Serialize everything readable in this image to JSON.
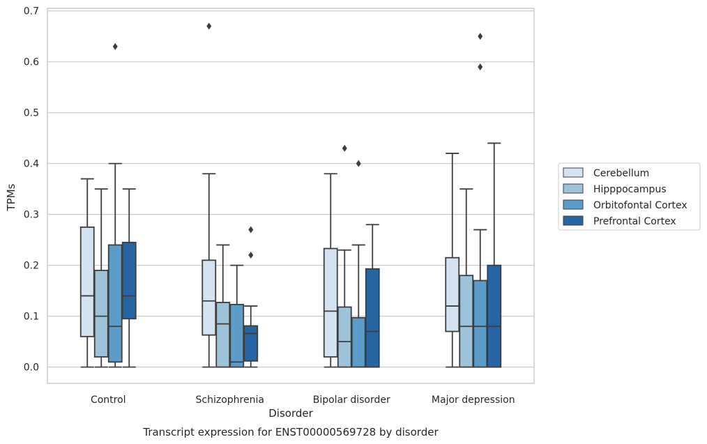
{
  "chart_data": {
    "type": "boxplot",
    "title": "",
    "caption": "Transcript expression for ENST00000569728 by disorder",
    "xlabel": "Disorder",
    "ylabel": "TPMs",
    "ylim": [
      -0.032,
      0.705
    ],
    "yticks": [
      "0.0",
      "0.1",
      "0.2",
      "0.3",
      "0.4",
      "0.5",
      "0.6",
      "0.7"
    ],
    "grid": "horizontal",
    "legend_position": "right",
    "categories": [
      "Control",
      "Schizophrenia",
      "Bipolar disorder",
      "Major depression"
    ],
    "series": [
      {
        "name": "Cerebellum",
        "color": "#d3e3f2",
        "boxes": [
          {
            "whislo": 0.0,
            "q1": 0.06,
            "med": 0.14,
            "q3": 0.275,
            "whishi": 0.37,
            "fliers": []
          },
          {
            "whislo": 0.0,
            "q1": 0.063,
            "med": 0.13,
            "q3": 0.21,
            "whishi": 0.38,
            "fliers": [
              0.67
            ]
          },
          {
            "whislo": 0.0,
            "q1": 0.02,
            "med": 0.11,
            "q3": 0.233,
            "whishi": 0.38,
            "fliers": []
          },
          {
            "whislo": 0.0,
            "q1": 0.07,
            "med": 0.12,
            "q3": 0.215,
            "whishi": 0.42,
            "fliers": []
          }
        ]
      },
      {
        "name": "Hipppocampus",
        "color": "#9cc3da",
        "boxes": [
          {
            "whislo": 0.0,
            "q1": 0.02,
            "med": 0.1,
            "q3": 0.19,
            "whishi": 0.35,
            "fliers": []
          },
          {
            "whislo": 0.0,
            "q1": 0.0,
            "med": 0.085,
            "q3": 0.127,
            "whishi": 0.24,
            "fliers": []
          },
          {
            "whislo": 0.0,
            "q1": 0.0,
            "med": 0.05,
            "q3": 0.118,
            "whishi": 0.23,
            "fliers": [
              0.43
            ]
          },
          {
            "whislo": 0.0,
            "q1": 0.0,
            "med": 0.08,
            "q3": 0.18,
            "whishi": 0.35,
            "fliers": []
          }
        ]
      },
      {
        "name": "Orbitofontal Cortex",
        "color": "#5b9cc8",
        "boxes": [
          {
            "whislo": 0.0,
            "q1": 0.01,
            "med": 0.08,
            "q3": 0.24,
            "whishi": 0.4,
            "fliers": [
              0.63
            ]
          },
          {
            "whislo": 0.0,
            "q1": 0.0,
            "med": 0.01,
            "q3": 0.123,
            "whishi": 0.2,
            "fliers": []
          },
          {
            "whislo": 0.0,
            "q1": 0.0,
            "med": 0.0,
            "q3": 0.097,
            "whishi": 0.24,
            "fliers": [
              0.4
            ]
          },
          {
            "whislo": 0.0,
            "q1": 0.0,
            "med": 0.08,
            "q3": 0.17,
            "whishi": 0.27,
            "fliers": [
              0.59,
              0.65
            ]
          }
        ]
      },
      {
        "name": "Prefrontal Cortex",
        "color": "#2665a3",
        "boxes": [
          {
            "whislo": 0.0,
            "q1": 0.095,
            "med": 0.14,
            "q3": 0.245,
            "whishi": 0.35,
            "fliers": []
          },
          {
            "whislo": 0.0,
            "q1": 0.012,
            "med": 0.066,
            "q3": 0.081,
            "whishi": 0.12,
            "fliers": [
              0.22,
              0.27
            ]
          },
          {
            "whislo": 0.0,
            "q1": 0.0,
            "med": 0.07,
            "q3": 0.193,
            "whishi": 0.28,
            "fliers": []
          },
          {
            "whislo": 0.0,
            "q1": 0.0,
            "med": 0.08,
            "q3": 0.2,
            "whishi": 0.44,
            "fliers": []
          }
        ]
      }
    ]
  }
}
